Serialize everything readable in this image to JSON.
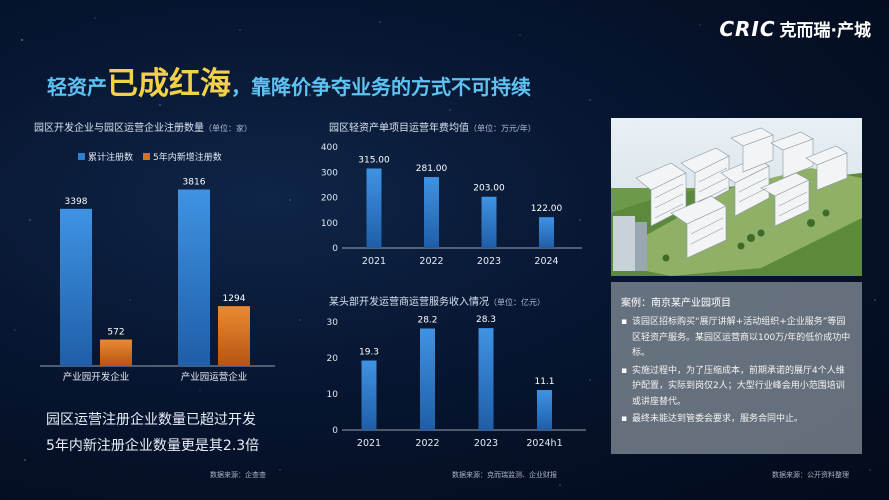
{
  "logo": {
    "en": "CRIC",
    "cn": "克而瑞·产城"
  },
  "title": {
    "part1": "轻资产",
    "highlight": "已成红海",
    "part2": "，靠降价争夺业务的方式不可持续"
  },
  "chart1": {
    "title": "园区开发企业与园区运营企业注册数量",
    "unit": "（单位：家）",
    "source": "数据来源：企查查"
  },
  "chart2": {
    "title": "园区轻资产单项目运营年费均值",
    "unit": "（单位：万元/年）"
  },
  "chart3": {
    "title": "某头部开发运营商运营服务收入情况",
    "unit": "（单位：亿元）",
    "source": "数据来源：克而瑞监测、企业财报"
  },
  "summary": {
    "line1": "园区运营注册企业数量已超过开发",
    "line2": "5年内新注册企业数量更是其2.3倍"
  },
  "case": {
    "title": "案例：南京某产业园项目",
    "items": [
      "该园区招标购买“展厅讲解+活动组织+企业服务”等园区轻资产服务。某园区运营商以100万/年的低价成功中标。",
      "实施过程中，为了压缩成本，前期承诺的展厅4个人维护配置，实际到岗仅2人；大型行业峰会用小范围培训或讲座替代。",
      "最终未能达到管委会要求，服务合同中止。"
    ],
    "source": "数据来源：公开资料整理"
  },
  "colors": {
    "blue": "#2f7fd0",
    "orange": "#d9701d",
    "accent": "#5ec3f2",
    "highlight": "#f3d04c"
  },
  "chart_data": [
    {
      "type": "bar",
      "title": "园区开发企业与园区运营企业注册数量",
      "unit": "（单位：家）",
      "categories": [
        "产业园开发企业",
        "产业园运营企业"
      ],
      "series": [
        {
          "name": "累计注册数",
          "values": [
            3398,
            3816
          ]
        },
        {
          "name": "5年内新增注册数",
          "values": [
            572,
            1294
          ]
        }
      ],
      "legend": "top"
    },
    {
      "type": "bar",
      "title": "园区轻资产单项目运营年费均值",
      "unit": "（单位：万元/年）",
      "categories": [
        "2021",
        "2022",
        "2023",
        "2024"
      ],
      "values": [
        315.0,
        281.0,
        203.0,
        122.0
      ],
      "value_labels": [
        "315.00",
        "281.00",
        "203.00",
        "122.00"
      ],
      "yticks": [
        "0",
        "100",
        "200",
        "300",
        "400"
      ],
      "ylim": [
        0,
        400
      ]
    },
    {
      "type": "bar",
      "title": "某头部开发运营商运营服务收入情况",
      "unit": "（单位：亿元）",
      "categories": [
        "2021",
        "2022",
        "2023",
        "2024h1"
      ],
      "values": [
        19.3,
        28.2,
        28.3,
        11.1
      ],
      "value_labels": [
        "19.3",
        "28.2",
        "28.3",
        "11.1"
      ],
      "yticks": [
        "0",
        "10",
        "20",
        "30"
      ],
      "ylim": [
        0,
        30
      ]
    }
  ]
}
